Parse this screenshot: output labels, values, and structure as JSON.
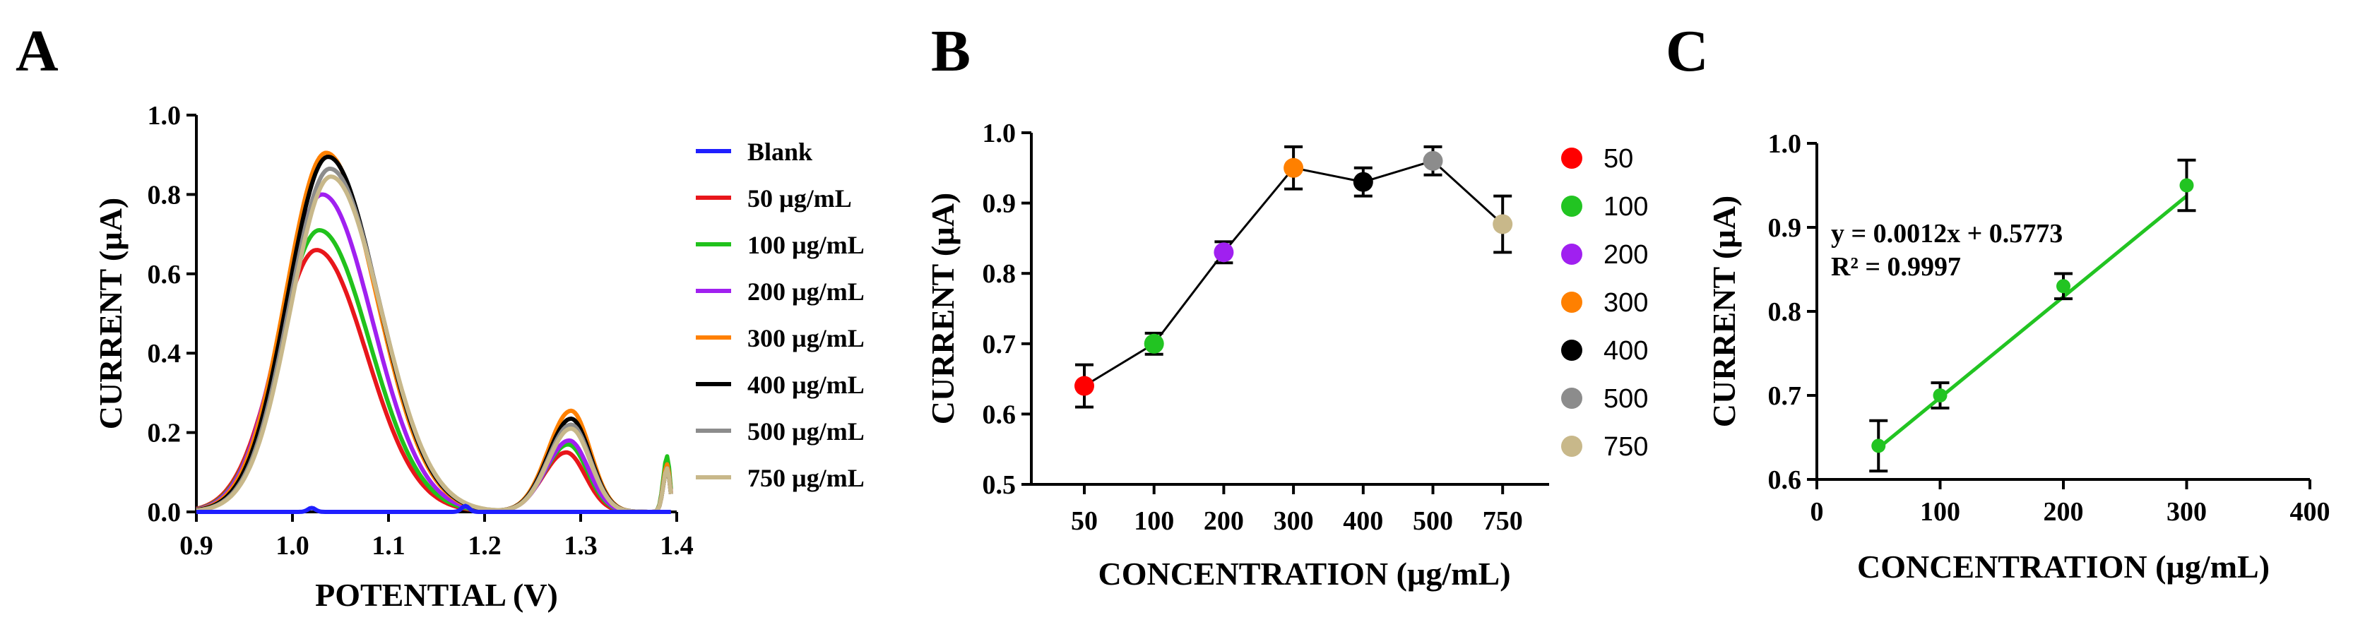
{
  "panel_titles": [
    "A",
    "B",
    "C"
  ],
  "chart_data": [
    {
      "type": "line",
      "title": "A",
      "xlabel": "POTENTIAL (V)",
      "ylabel": "CURRENT (µA)",
      "xlim": [
        0.9,
        1.4
      ],
      "ylim": [
        0,
        1.0
      ],
      "xticks": [
        "0.9",
        "1.0",
        "1.1",
        "1.2",
        "1.3",
        "1.4"
      ],
      "yticks": [
        "0.0",
        "0.2",
        "0.4",
        "0.6",
        "0.8",
        "1.0"
      ],
      "legend_position": "right",
      "series": [
        {
          "name": "Blank",
          "color": "#1f1fff",
          "peaks": [
            [
              1.02,
              0.01
            ],
            [
              1.18,
              0.015
            ]
          ]
        },
        {
          "name": "50 µg/mL",
          "color": "#e8161b",
          "peaks": [
            [
              1.025,
              0.66
            ],
            [
              1.285,
              0.15
            ],
            [
              1.39,
              0.11
            ]
          ]
        },
        {
          "name": "100 µg/mL",
          "color": "#21c21c",
          "peaks": [
            [
              1.028,
              0.71
            ],
            [
              1.287,
              0.17
            ],
            [
              1.39,
              0.14
            ]
          ]
        },
        {
          "name": "200 µg/mL",
          "color": "#a020f0",
          "peaks": [
            [
              1.031,
              0.8
            ],
            [
              1.288,
              0.18
            ],
            [
              1.39,
              0.12
            ]
          ]
        },
        {
          "name": "300 µg/mL",
          "color": "#ff8000",
          "peaks": [
            [
              1.035,
              0.905
            ],
            [
              1.29,
              0.255
            ],
            [
              1.39,
              0.12
            ]
          ]
        },
        {
          "name": "400 µg/mL",
          "color": "#000000",
          "peaks": [
            [
              1.037,
              0.895
            ],
            [
              1.29,
              0.235
            ],
            [
              1.39,
              0.11
            ]
          ]
        },
        {
          "name": "500 µg/mL",
          "color": "#8c8c8c",
          "peaks": [
            [
              1.039,
              0.865
            ],
            [
              1.29,
              0.22
            ],
            [
              1.39,
              0.11
            ]
          ]
        },
        {
          "name": "750 µg/mL",
          "color": "#c8b88a",
          "peaks": [
            [
              1.04,
              0.845
            ],
            [
              1.29,
              0.21
            ],
            [
              1.39,
              0.11
            ]
          ]
        }
      ]
    },
    {
      "type": "scatter",
      "title": "B",
      "xlabel": "CONCENTRATION (µg/mL)",
      "ylabel": "CURRENT (µA)",
      "categories": [
        "50",
        "100",
        "200",
        "300",
        "400",
        "500",
        "750"
      ],
      "values": [
        0.64,
        0.7,
        0.83,
        0.95,
        0.93,
        0.96,
        0.87
      ],
      "errors": [
        0.03,
        0.015,
        0.015,
        0.03,
        0.02,
        0.02,
        0.04
      ],
      "colors": [
        "#ff0000",
        "#22c422",
        "#a020f0",
        "#ff8000",
        "#000000",
        "#8c8c8c",
        "#c8b88a"
      ],
      "ylim": [
        0.5,
        1.0
      ],
      "yticks": [
        "0.5",
        "0.6",
        "0.7",
        "0.8",
        "0.9",
        "1.0"
      ],
      "legend": [
        "50",
        "100",
        "200",
        "300",
        "400",
        "500",
        "750"
      ],
      "legend_position": "right"
    },
    {
      "type": "scatter",
      "title": "C",
      "xlabel": "CONCENTRATION (µg/mL)",
      "ylabel": "CURRENT (µA)",
      "x": [
        50,
        100,
        200,
        300
      ],
      "y": [
        0.64,
        0.7,
        0.83,
        0.95
      ],
      "errors": [
        0.03,
        0.015,
        0.015,
        0.03
      ],
      "color": "#22c422",
      "xlim": [
        0,
        400
      ],
      "ylim": [
        0.6,
        1.0
      ],
      "xticks": [
        "0",
        "100",
        "200",
        "300",
        "400"
      ],
      "yticks": [
        "0.6",
        "0.7",
        "0.8",
        "0.9",
        "1.0"
      ],
      "fit_slope": 0.0012,
      "fit_intercept": 0.5773,
      "equation": "y = 0.0012x + 0.5773",
      "r_squared": "R² = 0.9997"
    }
  ]
}
